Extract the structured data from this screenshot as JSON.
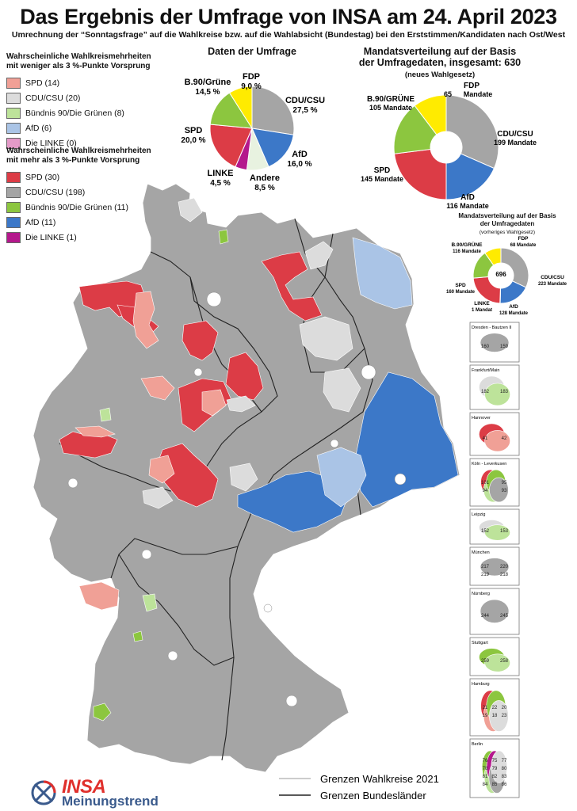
{
  "title": "Das Ergebnis der Umfrage von INSA am 24. April 2023",
  "subtitle": "Umrechnung der “Sonntagsfrage” auf die Wahlkreise bzw. auf die Wahlabsicht (Bundestag) bei den Erststimmen/Kandidaten nach Ost/West",
  "colors": {
    "spd_light": "#f0a096",
    "cdu_light": "#dcdcdc",
    "gruene_light": "#bde39a",
    "afd_light": "#aac4e6",
    "linke_light": "#e49ac8",
    "spd": "#dc3c46",
    "cdu": "#a5a5a5",
    "gruene": "#8cc63f",
    "afd": "#3c78c8",
    "linke": "#b4188c",
    "fdp": "#ffeb00",
    "andere": "#e8f2e0"
  },
  "legend_weak": {
    "heading_line1": "Wahrscheinliche Wahlkreismehrheiten",
    "heading_line2": "mit weniger als 3 %-Punkte Vorsprung",
    "items": [
      {
        "label": "SPD (14)",
        "color": "#f0a096"
      },
      {
        "label": "CDU/CSU (20)",
        "color": "#dcdcdc"
      },
      {
        "label": "Bündnis 90/Die Grünen (8)",
        "color": "#bde39a"
      },
      {
        "label": "AfD (6)",
        "color": "#aac4e6"
      },
      {
        "label": "Die LINKE (0)",
        "color": "#e49ac8"
      }
    ]
  },
  "legend_strong": {
    "heading_line1": "Wahrscheinliche Wahlkreismehrheiten",
    "heading_line2": "mit mehr als 3 %-Punkte Vorsprung",
    "items": [
      {
        "label": "SPD (30)",
        "color": "#dc3c46"
      },
      {
        "label": "CDU/CSU (198)",
        "color": "#a5a5a5"
      },
      {
        "label": "Bündnis 90/Die Grünen (11)",
        "color": "#8cc63f"
      },
      {
        "label": "AfD (11)",
        "color": "#3c78c8"
      },
      {
        "label": "Die LINKE (1)",
        "color": "#b4188c"
      }
    ]
  },
  "chart_data": [
    {
      "type": "pie",
      "title": "Daten der Umfrage",
      "slices": [
        {
          "label": "CDU/CSU",
          "value_text": "27,5 %",
          "value": 27.5,
          "color": "#a5a5a5"
        },
        {
          "label": "AfD",
          "value_text": "16,0 %",
          "value": 16.0,
          "color": "#3c78c8"
        },
        {
          "label": "Andere",
          "value_text": "8,5 %",
          "value": 8.5,
          "color": "#e8f2e0"
        },
        {
          "label": "LINKE",
          "value_text": "4,5 %",
          "value": 4.5,
          "color": "#b4188c"
        },
        {
          "label": "SPD",
          "value_text": "20,0 %",
          "value": 20.0,
          "color": "#dc3c46"
        },
        {
          "label": "B.90/Grüne",
          "value_text": "14,5 %",
          "value": 14.5,
          "color": "#8cc63f"
        },
        {
          "label": "FDP",
          "value_text": "9,0 %",
          "value": 9.0,
          "color": "#ffeb00"
        }
      ]
    },
    {
      "type": "pie",
      "title_line1": "Mandatsverteilung auf der Basis",
      "title_line2": "der Umfragedaten, insgesamt: 630",
      "title_line3": "(neues Wahlgesetz)",
      "slices": [
        {
          "label": "CDU/CSU",
          "value_text": "199 Mandate",
          "value": 199,
          "color": "#a5a5a5"
        },
        {
          "label": "AfD",
          "value_text": "116 Mandate",
          "value": 116,
          "color": "#3c78c8"
        },
        {
          "label": "SPD",
          "value_text": "145 Mandate",
          "value": 145,
          "color": "#dc3c46"
        },
        {
          "label": "B.90/GRÜNE",
          "value_text": "105 Mandate",
          "value": 105,
          "color": "#8cc63f"
        },
        {
          "label": "FDP",
          "value_text": "65",
          "value": 65,
          "color": "#ffeb00"
        }
      ],
      "fdp_suffix": "Mandate"
    },
    {
      "type": "pie",
      "title_line1": "Mandatsverteilung auf der Basis",
      "title_line2": "der Umfragedaten",
      "title_line3": "(vorheriges Wahlgesetz)",
      "center": "696",
      "slices": [
        {
          "label": "CDU/CSU",
          "value_text": "223 Mandate",
          "value": 223,
          "color": "#a5a5a5"
        },
        {
          "label": "AfD",
          "value_text": "128 Mandate",
          "value": 128,
          "color": "#3c78c8"
        },
        {
          "label": "LINKE",
          "value_text": "1 Mandat",
          "value": 1,
          "color": "#b4188c"
        },
        {
          "label": "SPD",
          "value_text": "160 Mandate",
          "value": 160,
          "color": "#dc3c46"
        },
        {
          "label": "B.90/GRÜNE",
          "value_text": "116 Mandate",
          "value": 116,
          "color": "#8cc63f"
        },
        {
          "label": "FDP",
          "value_text": "68 Mandate",
          "value": 68,
          "color": "#ffeb00"
        }
      ]
    }
  ],
  "city_insets": [
    {
      "name": "Dresden - Bautzen II",
      "numbers": [
        "160",
        "159"
      ]
    },
    {
      "name": "Frankfurt/Main",
      "numbers": [
        "182",
        "183"
      ]
    },
    {
      "name": "Hannover",
      "numbers": [
        "41",
        "42"
      ]
    },
    {
      "name": "Köln - Leverkusen",
      "numbers": [
        "101",
        "95",
        "94",
        "93"
      ]
    },
    {
      "name": "Leipzig",
      "numbers": [
        "152",
        "153"
      ]
    },
    {
      "name": "München",
      "numbers": [
        "217",
        "220",
        "219",
        "218"
      ]
    },
    {
      "name": "Nürnberg",
      "numbers": [
        "244",
        "245"
      ]
    },
    {
      "name": "Stuttgart",
      "numbers": [
        "259",
        "258"
      ]
    },
    {
      "name": "Hamburg",
      "numbers": [
        "21",
        "22",
        "20",
        "19",
        "18",
        "23"
      ]
    },
    {
      "name": "Berlin",
      "numbers": [
        "76",
        "75",
        "77",
        "78",
        "79",
        "80",
        "81",
        "82",
        "83",
        "84",
        "85",
        "86"
      ]
    }
  ],
  "map_legend": {
    "wahlkreise": "Grenzen Wahlkreise 2021",
    "bundeslaender": "Grenzen Bundesländer"
  },
  "logo": {
    "brand": "INSA",
    "tagline": "Meinungstrend"
  }
}
